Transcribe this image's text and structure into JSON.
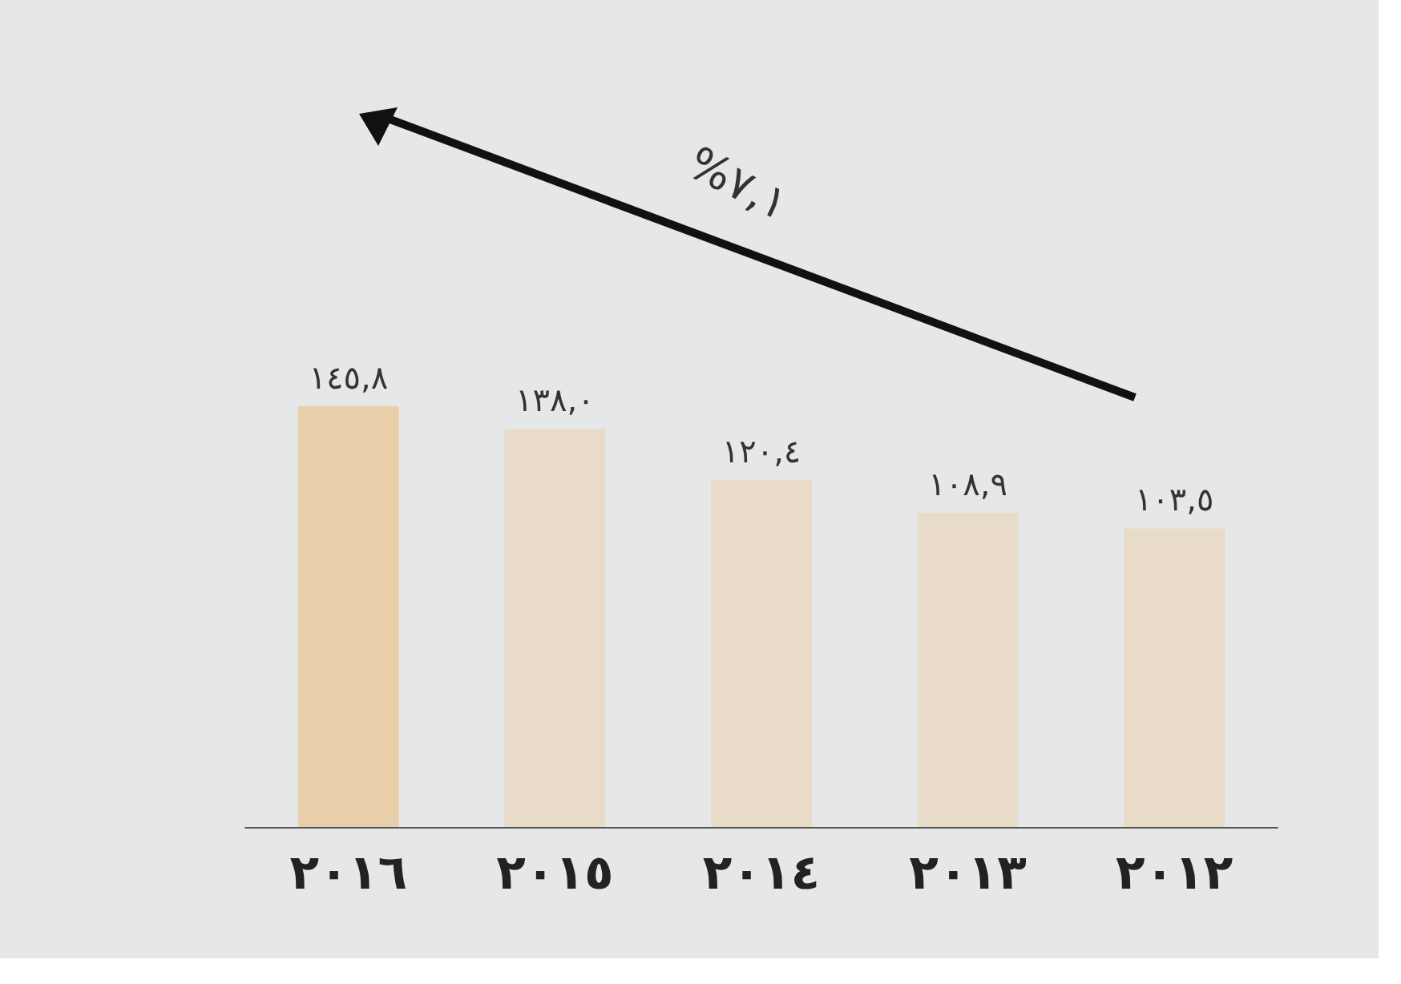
{
  "chart_data": {
    "type": "bar",
    "categories": [
      "٢٠١٦",
      "٢٠١٥",
      "٢٠١٤",
      "٢٠١٣",
      "٢٠١٢"
    ],
    "values": [
      145.8,
      138.0,
      120.4,
      108.9,
      103.5
    ],
    "colors": [
      "#e8cfaa",
      "#e8dcc8",
      "#e8dcc8",
      "#e8dcc8",
      "#e8dcc8"
    ],
    "value_labels": [
      "١٤٥,٨",
      "١٣٨,٠",
      "١٢٠,٤",
      "١٠٨,٩",
      "١٠٣,٥"
    ],
    "annotations": [
      "%٧,١"
    ]
  }
}
